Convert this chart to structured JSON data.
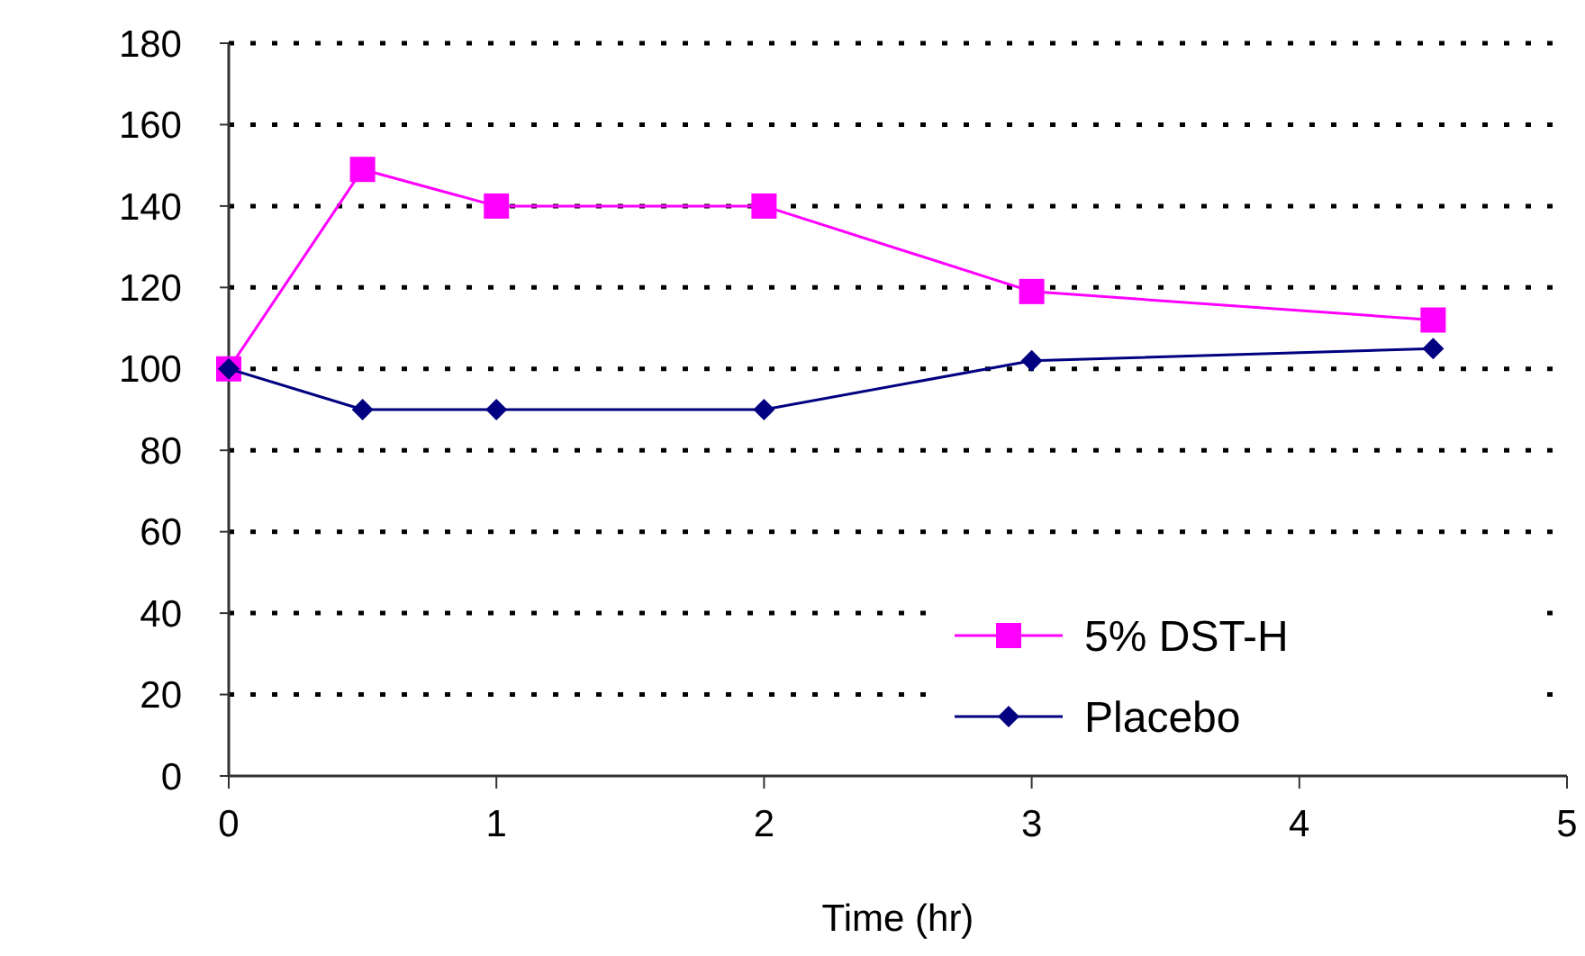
{
  "chart_data": {
    "type": "line",
    "xlabel": "Time (hr)",
    "x": [
      0,
      0.5,
      1,
      2,
      3,
      4.5
    ],
    "series": [
      {
        "name": "5% DST-H",
        "color": "#ff00ff",
        "marker": "square",
        "values": [
          100,
          149,
          140,
          140,
          119,
          112
        ]
      },
      {
        "name": "Placebo",
        "color": "#000080",
        "marker": "diamond",
        "values": [
          100,
          90,
          90,
          90,
          102,
          105
        ]
      }
    ],
    "xlim": [
      0,
      5
    ],
    "xticks": [
      0,
      1,
      2,
      3,
      4,
      5
    ],
    "ylim": [
      0,
      180
    ],
    "yticks": [
      0,
      20,
      40,
      60,
      80,
      100,
      120,
      140,
      160,
      180
    ],
    "grid": "y",
    "legend": "bottom right"
  }
}
